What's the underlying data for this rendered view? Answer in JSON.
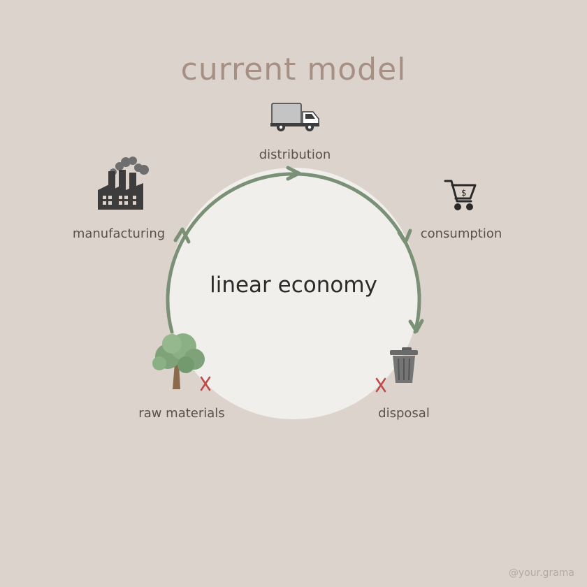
{
  "title": "current model",
  "center_label": "linear economy",
  "stages": [
    {
      "label": "distribution"
    },
    {
      "label": "consumption"
    },
    {
      "label": "disposal"
    },
    {
      "label": "raw materials"
    },
    {
      "label": "manufacturing"
    }
  ],
  "watermark": "@your.grama",
  "colors": {
    "background": "#dcd3cc",
    "circle": "#f1efeb",
    "arrow": "#7b9177",
    "title": "#a69084",
    "cross": "#c04848",
    "icon": "#3d3d3d"
  },
  "icons": [
    "truck-icon",
    "shopping-cart-icon",
    "trash-can-icon",
    "tree-icon",
    "factory-icon",
    "cross-icon"
  ]
}
